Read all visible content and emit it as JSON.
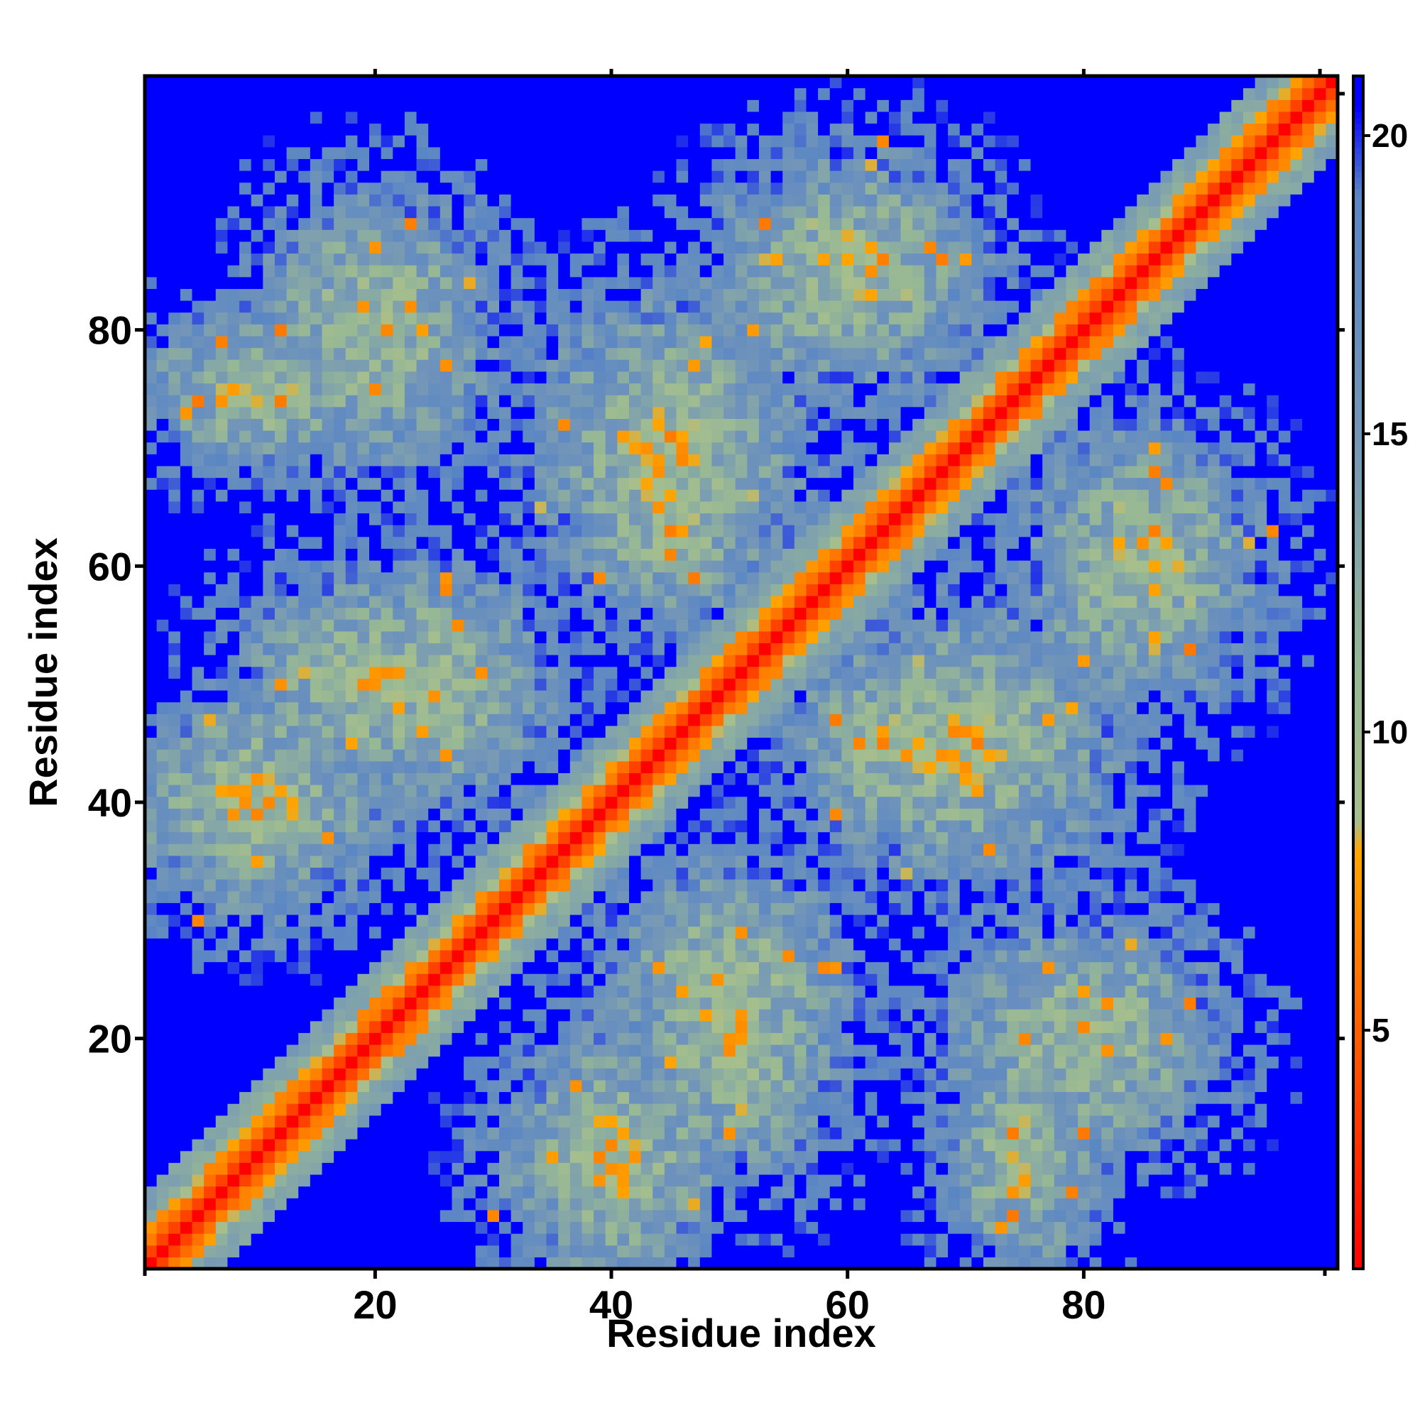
{
  "chart_data": {
    "type": "heatmap",
    "title": "",
    "xlabel": "Residue index",
    "ylabel": "Residue index",
    "n_residues": 101,
    "xlim": [
      1,
      101
    ],
    "ylim": [
      1,
      101
    ],
    "x_ticks": [
      20,
      40,
      60,
      80
    ],
    "y_ticks": [
      20,
      40,
      60,
      80
    ],
    "colorbar": {
      "ticks": [
        5,
        10,
        15,
        20
      ],
      "range": [
        1,
        21
      ],
      "palette": [
        {
          "value": 1,
          "color": "#ff0000"
        },
        {
          "value": 5.5,
          "color": "#ff6a00"
        },
        {
          "value": 8,
          "color": "#ffa500"
        },
        {
          "value": 8.5,
          "color": "#a8bf8c"
        },
        {
          "value": 11,
          "color": "#97b895"
        },
        {
          "value": 15,
          "color": "#7396b8"
        },
        {
          "value": 19,
          "color": "#5a86c4"
        },
        {
          "value": 20.5,
          "color": "#0000ff"
        },
        {
          "value": 21,
          "color": "#0000ff"
        }
      ]
    },
    "cutoff_color": "#0000ff",
    "contact_regions": [
      {
        "i": 20,
        "j": 50,
        "ri": 14,
        "rj": 12
      },
      {
        "i": 10,
        "j": 40,
        "ri": 10,
        "rj": 12
      },
      {
        "i": 45,
        "j": 70,
        "ri": 14,
        "rj": 16
      },
      {
        "i": 20,
        "j": 80,
        "ri": 12,
        "rj": 14
      },
      {
        "i": 60,
        "j": 85,
        "ri": 14,
        "rj": 12
      },
      {
        "i": 40,
        "j": 10,
        "ri": 14,
        "rj": 10
      },
      {
        "i": 65,
        "j": 45,
        "ri": 12,
        "rj": 12
      },
      {
        "i": 75,
        "j": 10,
        "ri": 12,
        "rj": 8
      },
      {
        "i": 50,
        "j": 25,
        "ri": 12,
        "rj": 12
      }
    ]
  }
}
